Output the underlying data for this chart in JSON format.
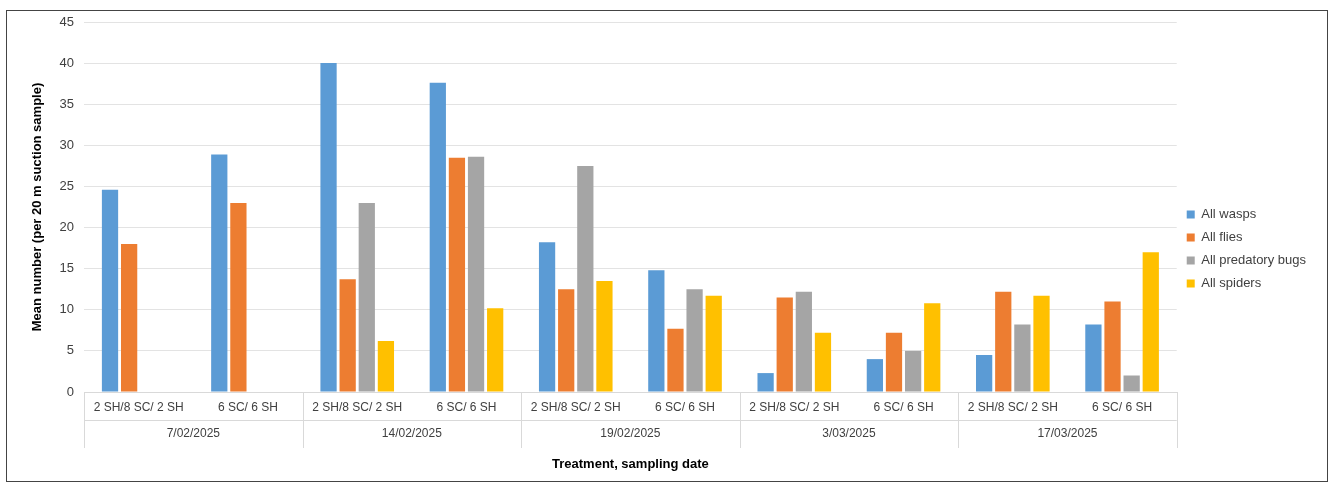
{
  "chart_data": {
    "type": "bar",
    "xlabel": "Treatment, sampling date",
    "ylabel": "Mean number (per 20 m suction sample)",
    "categories": [
      "2 SH/8 SC/ 2 SH",
      "6 SC/ 6 SH",
      "2 SH/8 SC/ 2 SH",
      "6 SC/ 6 SH",
      "2 SH/8 SC/ 2 SH",
      "6 SC/ 6 SH",
      "2 SH/8 SC/ 2 SH",
      "6 SC/ 6 SH",
      "2 SH/8 SC/ 2 SH",
      "6 SC/ 6 SH"
    ],
    "annotations": [
      "7/02/2025",
      "14/02/2025",
      "19/02/2025",
      "3/03/2025",
      "17/03/2025"
    ],
    "series": [
      {
        "name": "All wasps",
        "color": "#5b9bd5",
        "values": [
          24.6,
          28.9,
          40,
          37.6,
          18.2,
          14.8,
          2.3,
          4.0,
          4.5,
          8.2
        ]
      },
      {
        "name": "All flies",
        "color": "#ed7d31",
        "values": [
          18.0,
          23.0,
          13.7,
          28.5,
          12.5,
          7.7,
          11.5,
          7.2,
          12.2,
          11.0
        ]
      },
      {
        "name": "All predatory bugs",
        "color": "#a5a5a5",
        "values": [
          null,
          null,
          23.0,
          28.6,
          27.5,
          12.5,
          12.2,
          5.0,
          8.2,
          2.0
        ]
      },
      {
        "name": "All spiders",
        "color": "#ffc000",
        "values": [
          null,
          null,
          6.2,
          10.2,
          13.5,
          11.7,
          7.2,
          10.8,
          11.7,
          17.0
        ]
      }
    ],
    "ylim": [
      0,
      45
    ],
    "yticks": [
      0,
      5,
      10,
      15,
      20,
      25,
      30,
      35,
      40,
      45
    ],
    "grid": "y",
    "legend": "right"
  }
}
